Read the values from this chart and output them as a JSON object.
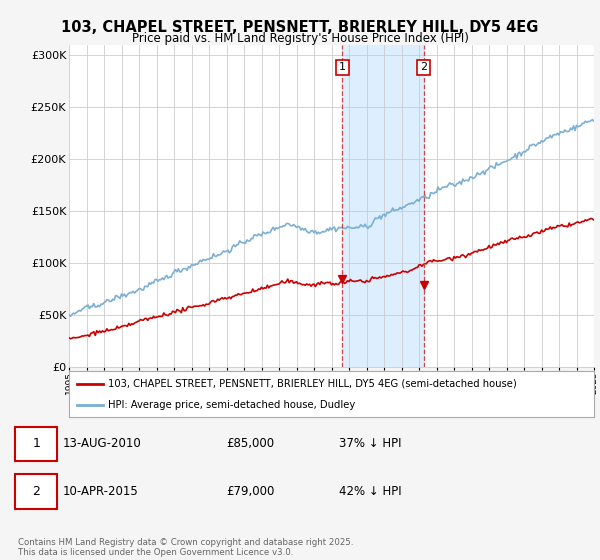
{
  "title": "103, CHAPEL STREET, PENSNETT, BRIERLEY HILL, DY5 4EG",
  "subtitle": "Price paid vs. HM Land Registry's House Price Index (HPI)",
  "yticks": [
    0,
    50000,
    100000,
    150000,
    200000,
    250000,
    300000
  ],
  "ytick_labels": [
    "£0",
    "£50K",
    "£100K",
    "£150K",
    "£200K",
    "£250K",
    "£300K"
  ],
  "xmin": 1995,
  "xmax": 2025,
  "ymin": 0,
  "ymax": 310000,
  "hpi_color": "#7bafd4",
  "price_color": "#cc0000",
  "event1_x": 2010.617,
  "event2_x": 2015.274,
  "event1_price": 85000,
  "event2_price": 79000,
  "legend_line1": "103, CHAPEL STREET, PENSNETT, BRIERLEY HILL, DY5 4EG (semi-detached house)",
  "legend_line2": "HPI: Average price, semi-detached house, Dudley",
  "footer": "Contains HM Land Registry data © Crown copyright and database right 2025.\nThis data is licensed under the Open Government Licence v3.0.",
  "bg_color": "#f5f5f5",
  "plot_bg_color": "#ffffff",
  "highlight_color": "#ddeeff"
}
